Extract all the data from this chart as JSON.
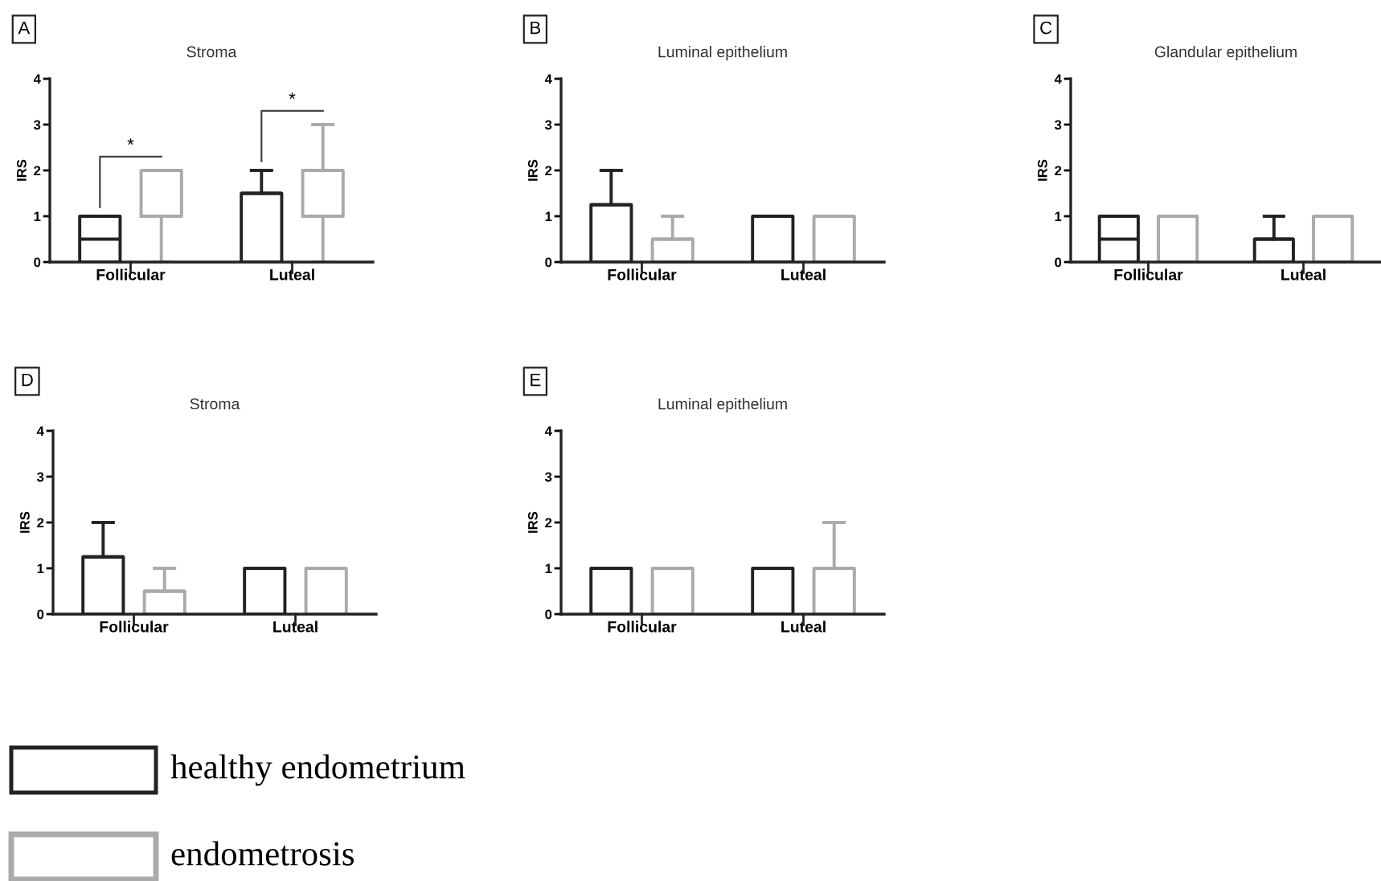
{
  "chart_data": [
    {
      "type": "box",
      "title": "Stroma",
      "ylabel": "IRS",
      "categories": [
        "Follicular",
        "Luteal"
      ],
      "ylim": [
        0,
        4
      ],
      "yticks": [
        0,
        1,
        2,
        3,
        4
      ],
      "grid": false,
      "legend": "bottom",
      "annotations": [
        "A",
        "*",
        "*"
      ],
      "series": [
        {
          "name": "healthy endometrium",
          "color": "#222222",
          "boxes": [
            {
              "low": 0,
              "q1": 0,
              "median": 0.5,
              "q3": 1,
              "high": 1
            },
            {
              "low": 0,
              "q1": 0,
              "median": 1.5,
              "q3": 1.5,
              "high": 2
            }
          ]
        },
        {
          "name": "endometrosis",
          "color": "#aaaaaa",
          "boxes": [
            {
              "low": 0,
              "q1": 1,
              "median": 2,
              "q3": 2,
              "high": 2
            },
            {
              "low": 0,
              "q1": 1,
              "median": 2,
              "q3": 2,
              "high": 3
            }
          ]
        }
      ]
    },
    {
      "type": "box",
      "title": "Luminal epithelium",
      "ylabel": "IRS",
      "categories": [
        "Follicular",
        "Luteal"
      ],
      "ylim": [
        0,
        4
      ],
      "yticks": [
        0,
        1,
        2,
        3,
        4
      ],
      "grid": false,
      "annotations": [
        "B"
      ],
      "series": [
        {
          "color": "#222222",
          "boxes": [
            {
              "low": 0,
              "q1": 0,
              "median": 1.25,
              "q3": 1.25,
              "high": 2
            },
            {
              "low": 0,
              "q1": 0,
              "median": 1,
              "q3": 1,
              "high": 1
            }
          ]
        },
        {
          "color": "#aaaaaa",
          "boxes": [
            {
              "low": 0,
              "q1": 0,
              "median": 0.5,
              "q3": 0.5,
              "high": 1
            },
            {
              "low": 0,
              "q1": 0,
              "median": 1,
              "q3": 1,
              "high": 1
            }
          ]
        }
      ]
    },
    {
      "type": "box",
      "title": "Glandular epithelium",
      "ylabel": "IRS",
      "categories": [
        "Follicular",
        "Luteal"
      ],
      "ylim": [
        0,
        4
      ],
      "yticks": [
        0,
        1,
        2,
        3,
        4
      ],
      "grid": false,
      "annotations": [
        "C"
      ],
      "series": [
        {
          "color": "#222222",
          "boxes": [
            {
              "low": 0,
              "q1": 0,
              "median": 0.5,
              "q3": 1,
              "high": 1
            },
            {
              "low": 0,
              "q1": 0,
              "median": 0.5,
              "q3": 0.5,
              "high": 1
            }
          ]
        },
        {
          "color": "#aaaaaa",
          "boxes": [
            {
              "low": 0,
              "q1": 0,
              "median": 1,
              "q3": 1,
              "high": 1
            },
            {
              "low": 0,
              "q1": 0,
              "median": 1,
              "q3": 1,
              "high": 1
            }
          ]
        }
      ]
    },
    {
      "type": "box",
      "title": "Stroma",
      "ylabel": "IRS",
      "categories": [
        "Follicular",
        "Luteal"
      ],
      "ylim": [
        0,
        4
      ],
      "yticks": [
        0,
        1,
        2,
        3,
        4
      ],
      "grid": false,
      "annotations": [
        "D"
      ],
      "series": [
        {
          "color": "#222222",
          "boxes": [
            {
              "low": 0,
              "q1": 0,
              "median": 1.25,
              "q3": 1.25,
              "high": 2
            },
            {
              "low": 0,
              "q1": 0,
              "median": 1,
              "q3": 1,
              "high": 1
            }
          ]
        },
        {
          "color": "#aaaaaa",
          "boxes": [
            {
              "low": 0,
              "q1": 0,
              "median": 0.5,
              "q3": 0.5,
              "high": 1
            },
            {
              "low": 0,
              "q1": 0,
              "median": 1,
              "q3": 1,
              "high": 1
            }
          ]
        }
      ]
    },
    {
      "type": "box",
      "title": "Luminal epithelium",
      "ylabel": "IRS",
      "categories": [
        "Follicular",
        "Luteal"
      ],
      "ylim": [
        0,
        4
      ],
      "yticks": [
        0,
        1,
        2,
        3,
        4
      ],
      "grid": false,
      "annotations": [
        "E"
      ],
      "series": [
        {
          "color": "#222222",
          "boxes": [
            {
              "low": 0,
              "q1": 0,
              "median": 1,
              "q3": 1,
              "high": 1
            },
            {
              "low": 0,
              "q1": 0,
              "median": 1,
              "q3": 1,
              "high": 1
            }
          ]
        },
        {
          "color": "#aaaaaa",
          "boxes": [
            {
              "low": 0,
              "q1": 0,
              "median": 1,
              "q3": 1,
              "high": 1
            },
            {
              "low": 0,
              "q1": 0,
              "median": 1,
              "q3": 1,
              "high": 2
            }
          ]
        }
      ]
    }
  ]
}
